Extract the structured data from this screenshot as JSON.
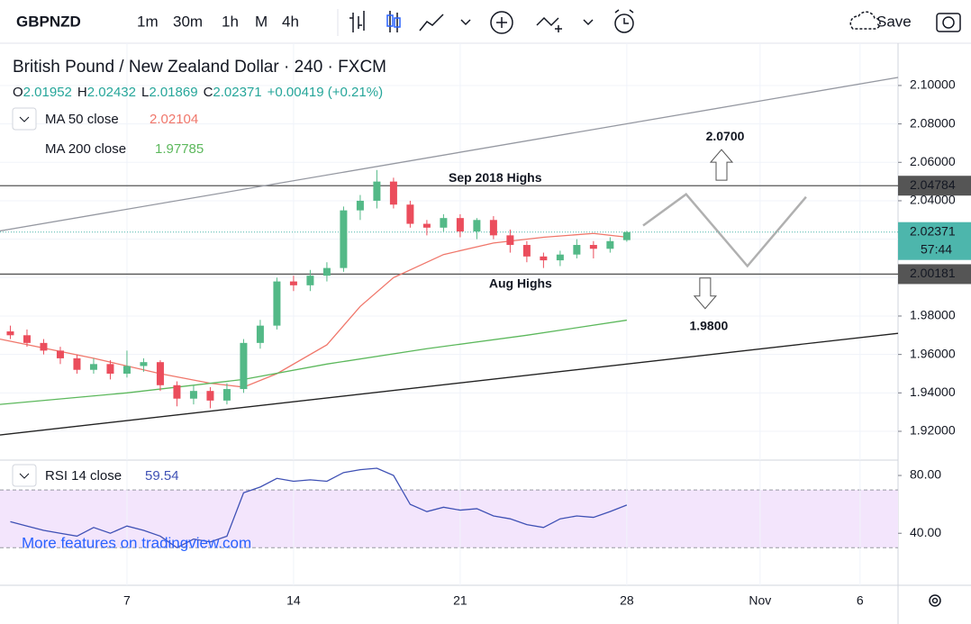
{
  "toolbar": {
    "symbol": "GBPNZD",
    "intervals": [
      "1m",
      "30m",
      "1h",
      "M",
      "4h"
    ],
    "active_color": "#2962ff",
    "save": "Save"
  },
  "watermark": "More features on tradingview.com",
  "chart_data": {
    "type": "candlestick",
    "title": "British Pound / New Zealand Dollar · 240 · FXCM",
    "ohlc_labels": [
      "O",
      "H",
      "L",
      "C"
    ],
    "change": "+0.00419 (+0.21%)",
    "up_color": "#53b987",
    "down_color": "#eb4d5c",
    "xlim": [
      -3.81,
      23.14
    ],
    "xticks": [
      {
        "value": 0,
        "label": "7"
      },
      {
        "value": 5,
        "label": "14"
      },
      {
        "value": 10,
        "label": "21"
      },
      {
        "value": 15,
        "label": "28"
      },
      {
        "value": 19,
        "label": "Nov"
      },
      {
        "value": 22,
        "label": "6"
      }
    ],
    "ylim": [
      1.905,
      2.122
    ],
    "yticks": [
      {
        "value": 1.92,
        "label": "1.92000"
      },
      {
        "value": 1.94,
        "label": "1.94000"
      },
      {
        "value": 1.96,
        "label": "1.96000"
      },
      {
        "value": 1.98,
        "label": "1.98000"
      },
      {
        "value": 2.0,
        "label": "2.00000"
      },
      {
        "value": 2.02,
        "label": "2.02000"
      },
      {
        "value": 2.04,
        "label": "2.04000"
      },
      {
        "value": 2.06,
        "label": "2.06000"
      },
      {
        "value": 2.08,
        "label": "2.08000"
      },
      {
        "value": 2.1,
        "label": "2.10000"
      }
    ],
    "grid": true,
    "x": [
      -3.5,
      -3,
      -2.5,
      -2,
      -1.5,
      -1,
      -0.5,
      0,
      0.5,
      1,
      1.5,
      2,
      2.5,
      3,
      3.5,
      4,
      4.5,
      5,
      5.5,
      6,
      6.5,
      7,
      7.5,
      8,
      8.5,
      9,
      9.5,
      10,
      10.5,
      11,
      11.5,
      12,
      12.5,
      13,
      13.5,
      14,
      14.5,
      15
    ],
    "open": [
      1.972,
      1.97,
      1.966,
      1.962,
      1.958,
      1.952,
      1.955,
      1.95,
      1.954,
      1.956,
      1.944,
      1.937,
      1.941,
      1.936,
      1.942,
      1.966,
      1.975,
      1.998,
      1.996,
      2.001,
      2.005,
      2.035,
      2.04,
      2.05,
      2.038,
      2.028,
      2.026,
      2.031,
      2.024,
      2.03,
      2.022,
      2.017,
      2.011,
      2.009,
      2.012,
      2.017,
      2.015,
      2.01952
    ],
    "high": [
      1.975,
      1.973,
      1.968,
      1.964,
      1.96,
      1.958,
      1.957,
      1.962,
      1.958,
      1.957,
      1.946,
      1.944,
      1.943,
      1.945,
      1.968,
      1.978,
      2.0,
      2.001,
      2.004,
      2.008,
      2.037,
      2.043,
      2.056,
      2.052,
      2.04,
      2.03,
      2.033,
      2.033,
      2.031,
      2.032,
      2.025,
      2.019,
      2.013,
      2.014,
      2.02,
      2.019,
      2.021,
      2.02432
    ],
    "low": [
      1.968,
      1.964,
      1.96,
      1.955,
      1.95,
      1.95,
      1.947,
      1.948,
      1.951,
      1.941,
      1.933,
      1.934,
      1.932,
      1.934,
      1.94,
      1.963,
      1.973,
      1.993,
      1.993,
      1.998,
      2.003,
      2.03,
      2.036,
      2.036,
      2.026,
      2.022,
      2.024,
      2.021,
      2.02,
      2.02,
      2.013,
      2.008,
      2.005,
      2.006,
      2.01,
      2.01,
      2.013,
      2.01869
    ],
    "close": [
      1.97,
      1.966,
      1.962,
      1.958,
      1.952,
      1.955,
      1.95,
      1.954,
      1.956,
      1.944,
      1.937,
      1.941,
      1.936,
      1.942,
      1.966,
      1.975,
      1.998,
      1.996,
      2.001,
      2.005,
      2.035,
      2.04,
      2.05,
      2.038,
      2.028,
      2.026,
      2.031,
      2.024,
      2.03,
      2.022,
      2.017,
      2.011,
      2.009,
      2.012,
      2.017,
      2.015,
      2.019,
      2.02371
    ],
    "last_color": "#4db6ac",
    "countdown": "57:44",
    "indicators": [
      {
        "name": "MA 50 close",
        "value": 2.02104,
        "color": "#f0776b",
        "x": [
          -3.81,
          -1,
          1,
          2.5,
          3.5,
          4.5,
          6,
          7,
          8,
          9.5,
          11,
          12.5,
          14,
          15
        ],
        "values": [
          1.968,
          1.958,
          1.95,
          1.945,
          1.943,
          1.95,
          1.965,
          1.985,
          2.0,
          2.012,
          2.018,
          2.021,
          2.023,
          2.02104
        ]
      },
      {
        "name": "MA 200 close",
        "value": 1.97785,
        "color": "#5cb85c",
        "x": [
          -3.81,
          0,
          3.5,
          6,
          9,
          12,
          15
        ],
        "values": [
          1.934,
          1.94,
          1.947,
          1.955,
          1.963,
          1.97,
          1.97785
        ]
      }
    ],
    "trendlines": [
      {
        "color": "#9598a1",
        "x": [
          -3.81,
          23.14
        ],
        "y": [
          2.0243,
          2.1042
        ]
      },
      {
        "color": "#222222",
        "x": [
          -3.81,
          23.14
        ],
        "y": [
          1.9181,
          1.971
        ]
      }
    ],
    "levels": [
      {
        "value": 2.04784,
        "color": "#555555"
      },
      {
        "value": 2.00181,
        "color": "#555555"
      }
    ],
    "projection": {
      "color": "#b0b0b0",
      "x": [
        15.49,
        16.78,
        18.62,
        20.38
      ],
      "y": [
        2.0271,
        2.0434,
        2.006,
        2.042
      ]
    },
    "annotations": [
      {
        "text": "Sep 2018 Highs",
        "x": 11.05,
        "y": 2.0515
      },
      {
        "text": "Aug Highs",
        "x": 11.81,
        "y": 1.9966
      },
      {
        "text": "2.0700",
        "x": 17.95,
        "y": 2.0732,
        "arrow": "up"
      },
      {
        "text": "1.9800",
        "x": 17.46,
        "y": 1.9745,
        "arrow": "down"
      }
    ],
    "rsi": {
      "name": "RSI 14 close",
      "value": 59.54,
      "color": "#3f51b5",
      "band": [
        30,
        70
      ],
      "band_color": "#f3e5fc",
      "ylim": [
        4,
        90
      ],
      "yticks": [
        {
          "value": 40,
          "label": "40.00"
        },
        {
          "value": 80,
          "label": "80.00"
        }
      ],
      "values": [
        48,
        45,
        42,
        40,
        38,
        44,
        40,
        45,
        42,
        38,
        30,
        36,
        34,
        38,
        68,
        72,
        78,
        76,
        77,
        76,
        82,
        84,
        85,
        80,
        60,
        55,
        58,
        56,
        57,
        52,
        50,
        46,
        44,
        50,
        52,
        51,
        55,
        59.54
      ]
    }
  }
}
